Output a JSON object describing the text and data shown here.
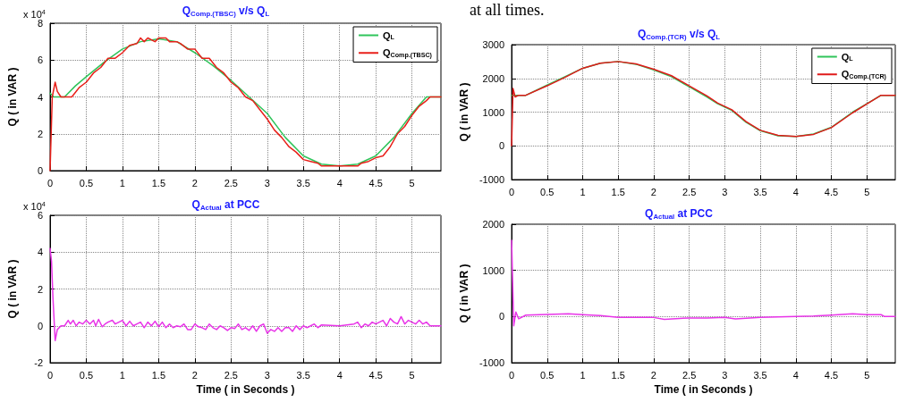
{
  "chart_data": [
    {
      "type": "line",
      "title": "Q$_{Comp.(TBSC)}$ v/s Q$_{L}$",
      "ylabel": "Q ( in VAR )",
      "annotations": [
        "x 10$^{4}$"
      ],
      "xlim": [
        0,
        5.4
      ],
      "xticks": [
        0,
        0.5,
        1,
        1.5,
        2,
        2.5,
        3,
        3.5,
        4,
        4.5,
        5
      ],
      "ylim": [
        0,
        8
      ],
      "yticks": [
        0,
        2,
        4,
        6,
        8
      ],
      "grid": true,
      "legend": "top right",
      "marker": "none",
      "series": [
        {
          "name": "Q$_{L}$",
          "color": "#2fc45a",
          "x": [
            0,
            0.05,
            0.2,
            0.35,
            0.5,
            0.75,
            1.0,
            1.25,
            1.5,
            1.75,
            2.0,
            2.25,
            2.5,
            2.75,
            3.0,
            3.25,
            3.5,
            3.75,
            4.0,
            4.25,
            4.5,
            4.75,
            5.0,
            5.2,
            5.4
          ],
          "values": [
            4.2,
            4.0,
            4.0,
            4.6,
            5.1,
            5.9,
            6.6,
            7.0,
            7.15,
            7.0,
            6.4,
            5.7,
            4.9,
            4.0,
            3.1,
            1.8,
            0.8,
            0.35,
            0.25,
            0.35,
            0.8,
            1.8,
            3.1,
            4.0,
            4.0
          ]
        },
        {
          "name": "Q$_{Comp.(TBSC)}$",
          "color": "#e8201a",
          "x": [
            0,
            0.03,
            0.07,
            0.1,
            0.15,
            0.3,
            0.4,
            0.5,
            0.6,
            0.7,
            0.8,
            0.9,
            1.0,
            1.1,
            1.2,
            1.25,
            1.3,
            1.35,
            1.45,
            1.5,
            1.6,
            1.65,
            1.75,
            1.8,
            1.9,
            2.0,
            2.1,
            2.2,
            2.3,
            2.4,
            2.5,
            2.6,
            2.7,
            2.8,
            2.9,
            3.0,
            3.1,
            3.2,
            3.3,
            3.4,
            3.5,
            3.6,
            3.7,
            3.75,
            4.0,
            4.25,
            4.3,
            4.4,
            4.5,
            4.6,
            4.7,
            4.8,
            4.9,
            5.0,
            5.1,
            5.2,
            5.25,
            5.4
          ],
          "values": [
            0,
            4.0,
            4.8,
            4.3,
            4.0,
            4.0,
            4.5,
            4.8,
            5.3,
            5.6,
            6.1,
            6.1,
            6.4,
            6.8,
            6.9,
            7.2,
            7.0,
            7.2,
            7.0,
            7.2,
            7.2,
            7.0,
            7.0,
            6.9,
            6.6,
            6.6,
            6.1,
            6.1,
            5.6,
            5.3,
            4.8,
            4.5,
            4.0,
            3.8,
            3.3,
            2.8,
            2.2,
            1.8,
            1.3,
            1.0,
            0.6,
            0.5,
            0.4,
            0.25,
            0.25,
            0.25,
            0.4,
            0.5,
            0.7,
            0.8,
            1.3,
            2.0,
            2.4,
            3.0,
            3.5,
            3.8,
            4.0,
            4.0
          ]
        }
      ]
    },
    {
      "type": "line",
      "title": "Q$_{Actual}$ at PCC",
      "xlabel": "Time ( in Seconds )",
      "ylabel": "Q ( in VAR )",
      "annotations": [
        "x 10$^{4}$"
      ],
      "xlim": [
        0,
        5.4
      ],
      "xticks": [
        0,
        0.5,
        1,
        1.5,
        2,
        2.5,
        3,
        3.5,
        4,
        4.5,
        5
      ],
      "ylim": [
        -2,
        6
      ],
      "yticks": [
        -2,
        0,
        2,
        4,
        6
      ],
      "grid": true,
      "marker": "none",
      "series": [
        {
          "color": "#e833e8",
          "x": [
            0,
            0.02,
            0.04,
            0.07,
            0.1,
            0.15,
            0.2,
            0.25,
            0.28,
            0.32,
            0.36,
            0.4,
            0.45,
            0.5,
            0.55,
            0.6,
            0.63,
            0.67,
            0.72,
            0.76,
            0.8,
            0.86,
            0.9,
            0.95,
            1.0,
            1.05,
            1.1,
            1.15,
            1.2,
            1.25,
            1.3,
            1.35,
            1.4,
            1.45,
            1.5,
            1.55,
            1.6,
            1.65,
            1.7,
            1.75,
            1.8,
            1.85,
            1.9,
            1.95,
            2.0,
            2.05,
            2.1,
            2.15,
            2.2,
            2.25,
            2.3,
            2.35,
            2.4,
            2.45,
            2.5,
            2.55,
            2.6,
            2.65,
            2.7,
            2.75,
            2.8,
            2.85,
            2.9,
            2.95,
            3.0,
            3.05,
            3.1,
            3.15,
            3.2,
            3.25,
            3.3,
            3.35,
            3.4,
            3.45,
            3.5,
            3.55,
            3.6,
            3.65,
            3.7,
            3.75,
            4.0,
            4.2,
            4.25,
            4.3,
            4.35,
            4.4,
            4.45,
            4.5,
            4.55,
            4.6,
            4.65,
            4.7,
            4.75,
            4.8,
            4.85,
            4.9,
            4.95,
            5.0,
            5.05,
            5.1,
            5.15,
            5.2,
            5.25,
            5.4
          ],
          "values": [
            4.2,
            3.5,
            1.5,
            -0.8,
            -0.2,
            0,
            0,
            0.3,
            0.1,
            0.3,
            0,
            0.2,
            0.1,
            0.3,
            0.1,
            0.3,
            0,
            0.35,
            -0.05,
            0.1,
            0.2,
            0.3,
            0.1,
            0.2,
            0.3,
            0,
            0.25,
            0,
            0.1,
            0.2,
            -0.1,
            0.2,
            0,
            0.25,
            -0.05,
            0.2,
            -0.1,
            0.1,
            -0.1,
            0,
            -0.05,
            0.1,
            -0.2,
            -0.2,
            0.1,
            -0.05,
            -0.1,
            -0.2,
            0.1,
            -0.1,
            -0.2,
            0,
            -0.1,
            -0.25,
            -0.1,
            -0.15,
            0.1,
            -0.2,
            -0.1,
            -0.25,
            0,
            -0.3,
            0,
            0.1,
            -0.4,
            -0.2,
            -0.3,
            -0.1,
            -0.3,
            -0.1,
            -0.1,
            -0.3,
            0,
            -0.2,
            0,
            -0.1,
            0,
            0.1,
            -0.1,
            0.05,
            0,
            0.1,
            0.2,
            -0.1,
            0.1,
            0,
            0.2,
            0.1,
            0.2,
            0.3,
            0,
            0.4,
            0.2,
            0.1,
            0.5,
            0.1,
            0.3,
            0.2,
            0.1,
            0.3,
            0.1,
            0.2,
            0,
            0
          ]
        }
      ]
    },
    {
      "type": "line",
      "title": "Q$_{Comp.(TCR)}$ v/s Q$_{L}$",
      "ylabel": "Q ( in VAR )",
      "annotations": [
        "at all times."
      ],
      "xlim": [
        0,
        5.4
      ],
      "xticks": [
        0,
        0.5,
        1,
        1.5,
        2,
        2.5,
        3,
        3.5,
        4,
        4.5,
        5
      ],
      "ylim": [
        -1000,
        3000
      ],
      "yticks": [
        -1000,
        0,
        1000,
        2000,
        3000
      ],
      "grid": true,
      "legend": "top right",
      "marker": "none",
      "series": [
        {
          "name": "Q$_{L}$",
          "color": "#2fc45a",
          "x": [
            0,
            0.2,
            0.5,
            0.75,
            1.0,
            1.25,
            1.5,
            1.75,
            2.0,
            2.25,
            2.5,
            2.75,
            2.9,
            3.1,
            3.3,
            3.5,
            3.75,
            4.0,
            4.25,
            4.5,
            4.8,
            5.0,
            5.2,
            5.4
          ],
          "values": [
            1500,
            1500,
            1800,
            2050,
            2300,
            2450,
            2500,
            2420,
            2250,
            2050,
            1750,
            1450,
            1250,
            1050,
            700,
            450,
            300,
            280,
            350,
            550,
            1000,
            1250,
            1500,
            1500
          ]
        },
        {
          "name": "Q$_{Comp.(TCR)}$",
          "color": "#e01a1a",
          "x": [
            0,
            0.02,
            0.05,
            0.1,
            0.2,
            0.5,
            0.75,
            1.0,
            1.25,
            1.5,
            1.75,
            2.0,
            2.25,
            2.5,
            2.75,
            2.9,
            3.1,
            3.3,
            3.5,
            3.75,
            4.0,
            4.25,
            4.5,
            4.8,
            5.0,
            5.2,
            5.4
          ],
          "values": [
            0,
            1700,
            1450,
            1500,
            1500,
            1780,
            2030,
            2300,
            2450,
            2500,
            2430,
            2270,
            2080,
            1780,
            1480,
            1270,
            1070,
            720,
            460,
            310,
            280,
            340,
            540,
            980,
            1240,
            1500,
            1500
          ]
        }
      ]
    },
    {
      "type": "line",
      "title": "Q$_{Actual}$ at PCC",
      "xlabel": "Time ( in Seconds )",
      "ylabel": "Q ( in VAR )",
      "xlim": [
        0,
        5.4
      ],
      "xticks": [
        0,
        0.5,
        1,
        1.5,
        2,
        2.5,
        3,
        3.5,
        4,
        4.5,
        5
      ],
      "ylim": [
        -1000,
        2000
      ],
      "yticks": [
        -1000,
        0,
        1000,
        2000
      ],
      "grid": true,
      "marker": "none",
      "series": [
        {
          "color": "#e833e8",
          "x": [
            0,
            0.03,
            0.06,
            0.1,
            0.2,
            0.4,
            0.6,
            0.8,
            1.0,
            1.25,
            1.5,
            1.75,
            2.0,
            2.15,
            2.5,
            2.75,
            3.0,
            3.15,
            3.5,
            3.75,
            4.0,
            4.25,
            4.5,
            4.8,
            5.0,
            5.2,
            5.25,
            5.4
          ],
          "values": [
            1650,
            -200,
            100,
            -50,
            30,
            40,
            50,
            60,
            40,
            20,
            -20,
            -20,
            -20,
            -60,
            -30,
            -30,
            -20,
            -50,
            -20,
            -10,
            0,
            10,
            30,
            60,
            40,
            40,
            0,
            0
          ]
        }
      ]
    }
  ]
}
